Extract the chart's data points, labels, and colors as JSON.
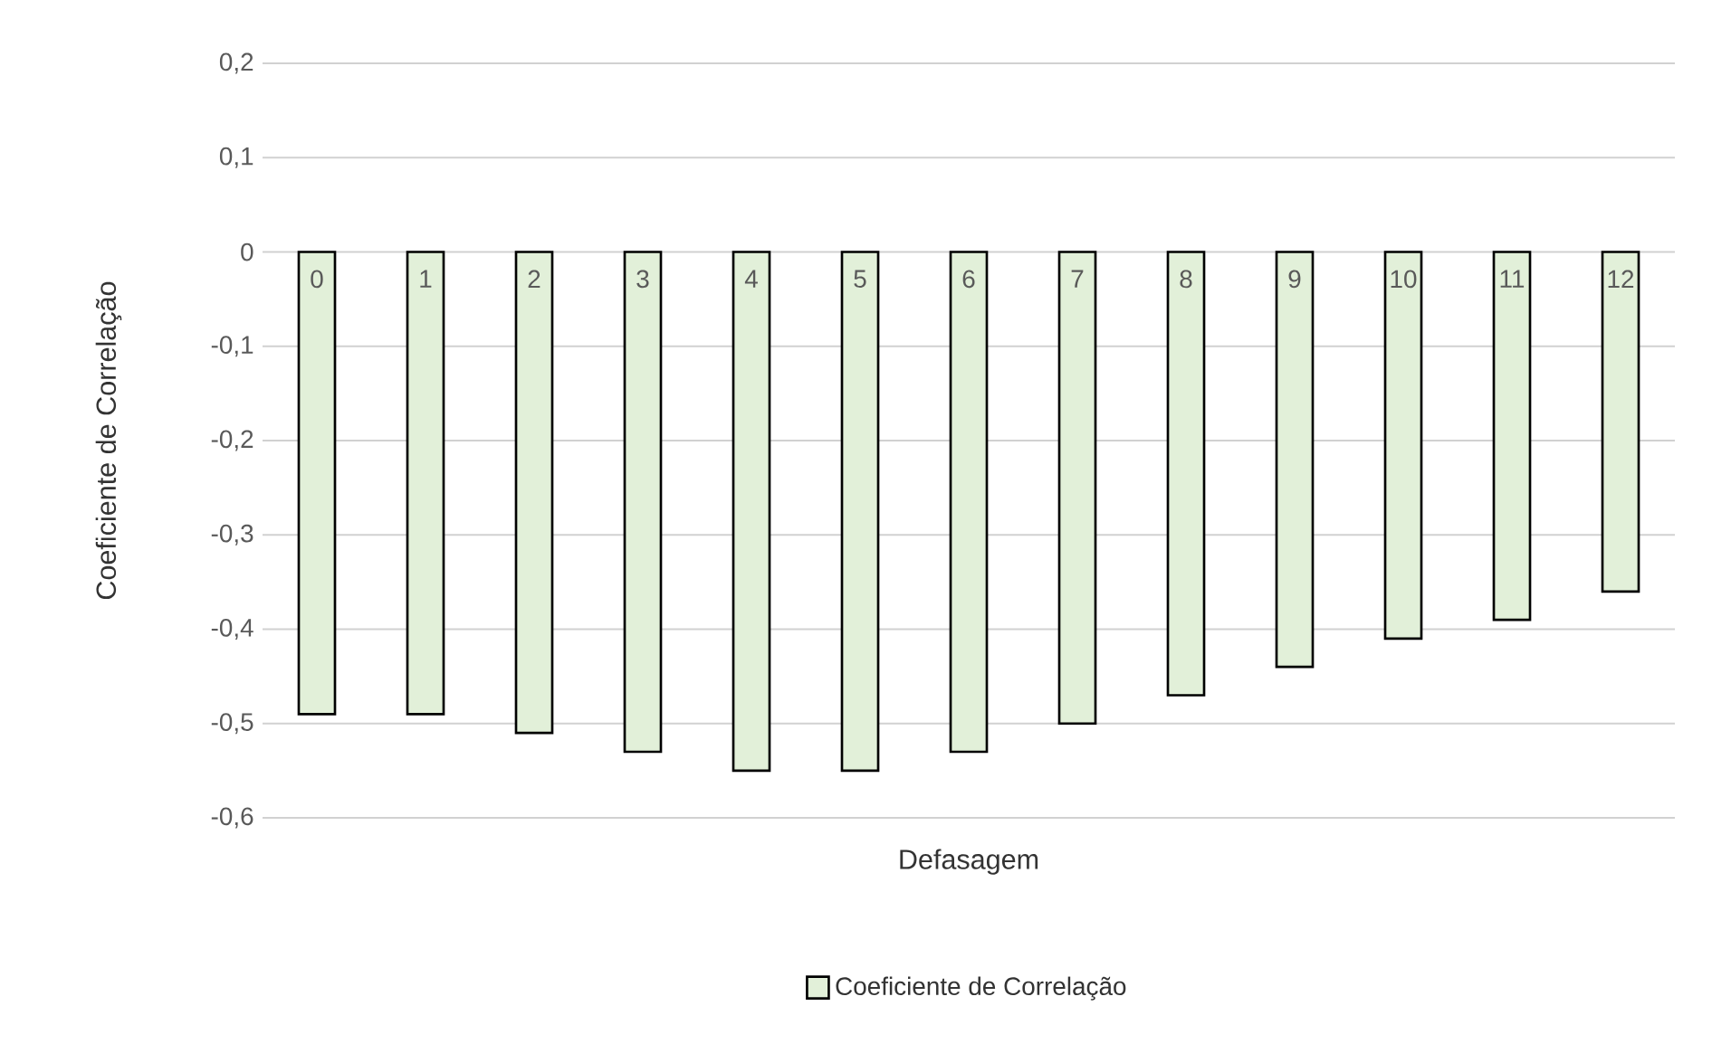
{
  "chart_data": {
    "type": "bar",
    "xlabel": "Defasagem",
    "ylabel": "Coeficiente de Correlação",
    "categories": [
      "0",
      "1",
      "2",
      "3",
      "4",
      "5",
      "6",
      "7",
      "8",
      "9",
      "10",
      "11",
      "12"
    ],
    "series": [
      {
        "name": "Coeficiente de Correlação",
        "color": "#e2f0d9",
        "values": [
          -0.49,
          -0.49,
          -0.51,
          -0.53,
          -0.55,
          -0.55,
          -0.53,
          -0.5,
          -0.47,
          -0.44,
          -0.41,
          -0.39,
          -0.36
        ]
      }
    ],
    "ylim": [
      -0.6,
      0.2
    ],
    "yticks": [
      {
        "value": 0.2,
        "label": "0,2"
      },
      {
        "value": 0.1,
        "label": "0,1"
      },
      0,
      {
        "value": -0.1,
        "label": "-0,1"
      },
      {
        "value": -0.2,
        "label": "-0,2"
      },
      {
        "value": -0.3,
        "label": "-0,3"
      },
      {
        "value": -0.4,
        "label": "-0,4"
      },
      {
        "value": -0.5,
        "label": "-0,5"
      },
      {
        "value": -0.6,
        "label": "-0,6"
      }
    ],
    "grid": "y",
    "legend": "bottom"
  }
}
